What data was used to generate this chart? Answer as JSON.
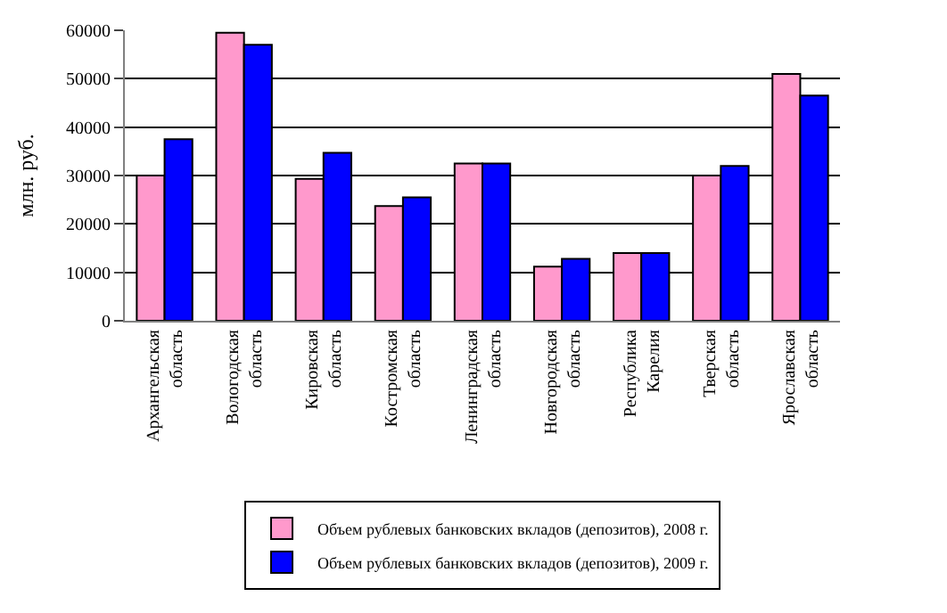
{
  "chart_data": {
    "type": "bar",
    "ylabel": "млн. руб.",
    "categories": [
      "Архангельская область",
      "Вологодская область",
      "Кировская область",
      "Костромская область",
      "Ленинградская область",
      "Новгородская область",
      "Республика Карелия",
      "Тверская область",
      "Ярославская область"
    ],
    "series": [
      {
        "name": "Объем рублевых банковских вкладов (депозитов), 2008 г.",
        "color": "#ff99cc",
        "values": [
          30000,
          59500,
          29300,
          23700,
          32500,
          11200,
          14000,
          30000,
          51000
        ]
      },
      {
        "name": "Объем рублевых банковских вкладов (депозитов), 2009 г.",
        "color": "#0000ff",
        "values": [
          37500,
          57000,
          34700,
          25500,
          32500,
          12800,
          14000,
          32000,
          46500
        ]
      }
    ],
    "ylim": [
      0,
      60000
    ],
    "yticks": [
      0,
      10000,
      20000,
      30000,
      40000,
      50000,
      60000
    ],
    "grid": "y",
    "legend": "bottom"
  }
}
